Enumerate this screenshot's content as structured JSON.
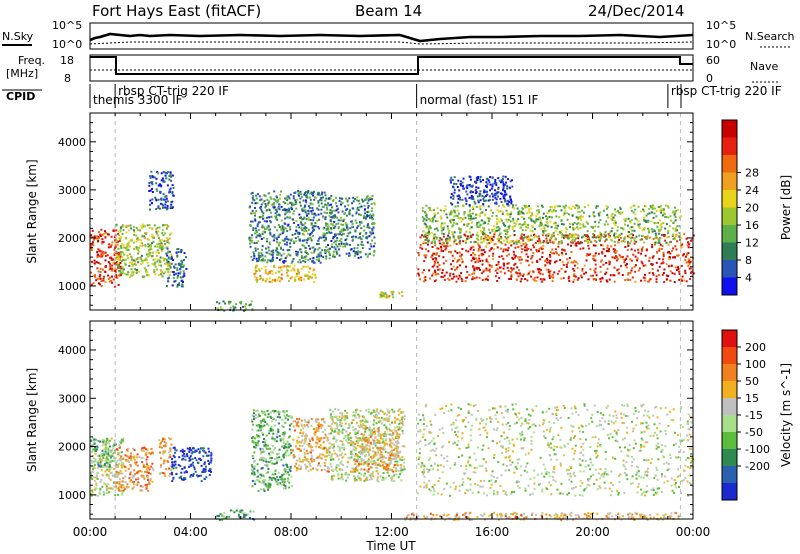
{
  "header": {
    "station": "Fort Hays East (fitACF)",
    "beam": "Beam 14",
    "date": "24/Dec/2014"
  },
  "top_panels": {
    "nsky_label": "N.Sky",
    "nsky_ticks": [
      "10^5",
      "10^0"
    ],
    "nsearch_label": "N.Search",
    "nsearch_ticks": [
      "10^5",
      "10^0"
    ],
    "freq_label_1": "Freq.",
    "freq_label_2": "[MHz]",
    "freq_ticks": [
      "18",
      "8"
    ],
    "nave_label": "Nave",
    "nave_ticks": [
      "60",
      "0"
    ],
    "cpid_label": "CPID"
  },
  "cpid_segments": [
    {
      "label": "themis 3300 IF",
      "start_hour": 0.0,
      "end_hour": 1.0,
      "row": "low"
    },
    {
      "label": "rbsp CT-trig 220 IF",
      "start_hour": 1.0,
      "end_hour": 13.0,
      "row": "high"
    },
    {
      "label": "normal (fast) 151 IF",
      "start_hour": 13.0,
      "end_hour": 23.0,
      "row": "low"
    },
    {
      "label": "rbsp CT-trig 220 IF",
      "start_hour": 23.0,
      "end_hour": 24.0,
      "row": "high"
    }
  ],
  "chart_data": [
    {
      "type": "heatmap",
      "title": "Power [dB]",
      "ylabel": "Slant Range [km]",
      "xlabel": "Time UT",
      "xlim": [
        0,
        24
      ],
      "ylim": [
        500,
        4600
      ],
      "x_ticks": [
        "00:00",
        "04:00",
        "08:00",
        "12:00",
        "16:00",
        "20:00",
        "00:00"
      ],
      "y_ticks": [
        1000,
        2000,
        3000,
        4000
      ],
      "colorbar": {
        "label": "Power [dB]",
        "ticks": [
          "4",
          "8",
          "12",
          "16",
          "20",
          "24",
          "28"
        ],
        "colors": [
          "#1010ee",
          "#2a55b8",
          "#2f7d55",
          "#5cb04a",
          "#9ac82e",
          "#e8d418",
          "#f0a020",
          "#f06a10",
          "#e82010",
          "#c80000"
        ]
      },
      "blobs": [
        {
          "t0": 0.0,
          "t1": 1.2,
          "r0": 1000,
          "r1": 2200,
          "level": 0.85
        },
        {
          "t0": 1.0,
          "t1": 3.2,
          "r0": 1200,
          "r1": 2300,
          "level": 0.45
        },
        {
          "t0": 2.3,
          "t1": 3.3,
          "r0": 2600,
          "r1": 3400,
          "level": 0.15
        },
        {
          "t0": 3.0,
          "t1": 3.8,
          "r0": 1000,
          "r1": 1800,
          "level": 0.2
        },
        {
          "t0": 5.0,
          "t1": 6.5,
          "r0": 500,
          "r1": 700,
          "level": 0.3
        },
        {
          "t0": 6.3,
          "t1": 9.5,
          "r0": 1500,
          "r1": 3000,
          "level": 0.25
        },
        {
          "t0": 6.5,
          "t1": 9.0,
          "r0": 1100,
          "r1": 1450,
          "level": 0.6
        },
        {
          "t0": 9.5,
          "t1": 11.3,
          "r0": 1600,
          "r1": 2900,
          "level": 0.25
        },
        {
          "t0": 11.5,
          "t1": 12.4,
          "r0": 780,
          "r1": 900,
          "level": 0.55
        },
        {
          "t0": 13.0,
          "t1": 24.0,
          "r0": 1100,
          "r1": 2100,
          "level": 0.85
        },
        {
          "t0": 13.2,
          "t1": 23.5,
          "r0": 1900,
          "r1": 2700,
          "level": 0.4
        },
        {
          "t0": 14.3,
          "t1": 16.8,
          "r0": 2700,
          "r1": 3300,
          "level": 0.12
        }
      ]
    },
    {
      "type": "heatmap",
      "title": "Velocity [m s^-1]",
      "ylabel": "Slant Range [km]",
      "xlabel": "Time UT",
      "xlim": [
        0,
        24
      ],
      "ylim": [
        500,
        4600
      ],
      "x_ticks": [
        "00:00",
        "04:00",
        "08:00",
        "12:00",
        "16:00",
        "20:00",
        "00:00"
      ],
      "y_ticks": [
        1000,
        2000,
        3000,
        4000
      ],
      "colorbar": {
        "label": "Velocity [m s^-1]",
        "ticks": [
          "200",
          "100",
          "50",
          "15",
          "-15",
          "-50",
          "-100",
          "-200"
        ],
        "colors": [
          "#1a2ad0",
          "#2a60b0",
          "#2e8a50",
          "#5cbd3c",
          "#a8e08a",
          "#c0c0c0",
          "#f0b020",
          "#f08020",
          "#f04a10",
          "#e01010"
        ]
      },
      "blobs": [
        {
          "t0": 0.0,
          "t1": 1.3,
          "r0": 1000,
          "r1": 2200,
          "level": 0.5
        },
        {
          "t0": 0.0,
          "t1": 1.0,
          "r0": 1600,
          "r1": 2200,
          "level": 0.35
        },
        {
          "t0": 1.0,
          "t1": 2.5,
          "r0": 1100,
          "r1": 2000,
          "level": 0.7
        },
        {
          "t0": 2.7,
          "t1": 3.2,
          "r0": 1400,
          "r1": 2200,
          "level": 0.65
        },
        {
          "t0": 3.2,
          "t1": 4.8,
          "r0": 1300,
          "r1": 2000,
          "level": 0.05
        },
        {
          "t0": 5.0,
          "t1": 6.5,
          "r0": 500,
          "r1": 700,
          "level": 0.3
        },
        {
          "t0": 6.4,
          "t1": 8.0,
          "r0": 1100,
          "r1": 2800,
          "level": 0.35
        },
        {
          "t0": 8.0,
          "t1": 9.5,
          "r0": 1500,
          "r1": 2600,
          "level": 0.65
        },
        {
          "t0": 9.5,
          "t1": 12.5,
          "r0": 1300,
          "r1": 2800,
          "level": 0.5
        },
        {
          "t0": 10.5,
          "t1": 12.3,
          "r0": 1500,
          "r1": 2400,
          "level": 0.65
        },
        {
          "t0": 13.0,
          "t1": 24.0,
          "r0": 1000,
          "r1": 2900,
          "level": 0.5
        },
        {
          "t0": 12.5,
          "t1": 23.5,
          "r0": 500,
          "r1": 650,
          "level": 0.65
        }
      ]
    }
  ]
}
